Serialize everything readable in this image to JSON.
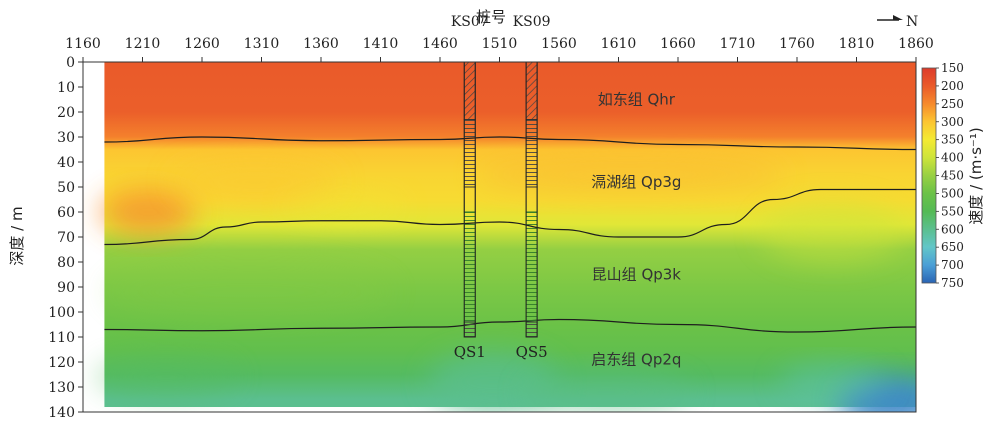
{
  "chart_data": {
    "type": "heatmap",
    "title": "",
    "xlabel": "桩号",
    "ylabel": "深度 / m",
    "x_ticks": [
      1160,
      1210,
      1260,
      1310,
      1360,
      1410,
      1460,
      1510,
      1560,
      1610,
      1660,
      1710,
      1760,
      1810,
      1860
    ],
    "y_ticks": [
      0,
      10,
      20,
      30,
      40,
      50,
      60,
      70,
      80,
      90,
      100,
      110,
      120,
      130,
      140
    ],
    "xlim": [
      1160,
      1860
    ],
    "ylim": [
      0,
      140
    ],
    "data_extent": {
      "x": [
        1178,
        1860
      ],
      "y": [
        0,
        138
      ]
    },
    "north_label": "N",
    "colorbar": {
      "label": "速度 / (m·s⁻¹)",
      "ticks": [
        150,
        200,
        250,
        300,
        350,
        400,
        450,
        500,
        550,
        600,
        650,
        700,
        750
      ],
      "range": [
        150,
        750
      ],
      "colors": [
        "#dd3b2b",
        "#ea5a2a",
        "#f68a2c",
        "#fcc531",
        "#f4ea33",
        "#cde43a",
        "#98d043",
        "#6bc247",
        "#54ba55",
        "#5bbf8f",
        "#62c6c8",
        "#4b9fd6",
        "#2a64b4"
      ]
    },
    "velocity_profile": {
      "depth": [
        0,
        20,
        30,
        35,
        45,
        55,
        65,
        75,
        90,
        105,
        115,
        125,
        135
      ],
      "value": [
        200,
        205,
        240,
        300,
        320,
        330,
        375,
        455,
        480,
        500,
        520,
        560,
        600
      ]
    },
    "boundaries": [
      {
        "x": [
          1178,
          1260,
          1360,
          1460,
          1510,
          1560,
          1660,
          1760,
          1860
        ],
        "y": [
          32,
          30,
          31.5,
          31,
          30,
          31,
          33,
          34,
          35
        ]
      },
      {
        "x": [
          1178,
          1250,
          1280,
          1310,
          1360,
          1410,
          1460,
          1510,
          1560,
          1610,
          1660,
          1700,
          1740,
          1780,
          1860
        ],
        "y": [
          73,
          71,
          66,
          64,
          63.5,
          63.5,
          65,
          64,
          67,
          70,
          70,
          65,
          55,
          51,
          51
        ]
      },
      {
        "x": [
          1178,
          1260,
          1360,
          1460,
          1510,
          1560,
          1660,
          1760,
          1860
        ],
        "y": [
          107,
          107.5,
          106.5,
          106,
          104,
          103,
          105,
          108,
          106
        ]
      }
    ],
    "layers": [
      {
        "label": "如东组 Qhr",
        "x": 1625,
        "y": 15
      },
      {
        "label": "滆湖组 Qp3g",
        "x": 1625,
        "y": 48
      },
      {
        "label": "昆山组 Qp3k",
        "x": 1625,
        "y": 85
      },
      {
        "label": "启东组 Qp2q",
        "x": 1625,
        "y": 119
      }
    ],
    "wells": [
      {
        "name": "QS1",
        "top_label": "KS07",
        "x": 1485,
        "bottom_depth": 110
      },
      {
        "name": "QS5",
        "top_label": "KS09",
        "x": 1537,
        "bottom_depth": 110
      }
    ]
  }
}
